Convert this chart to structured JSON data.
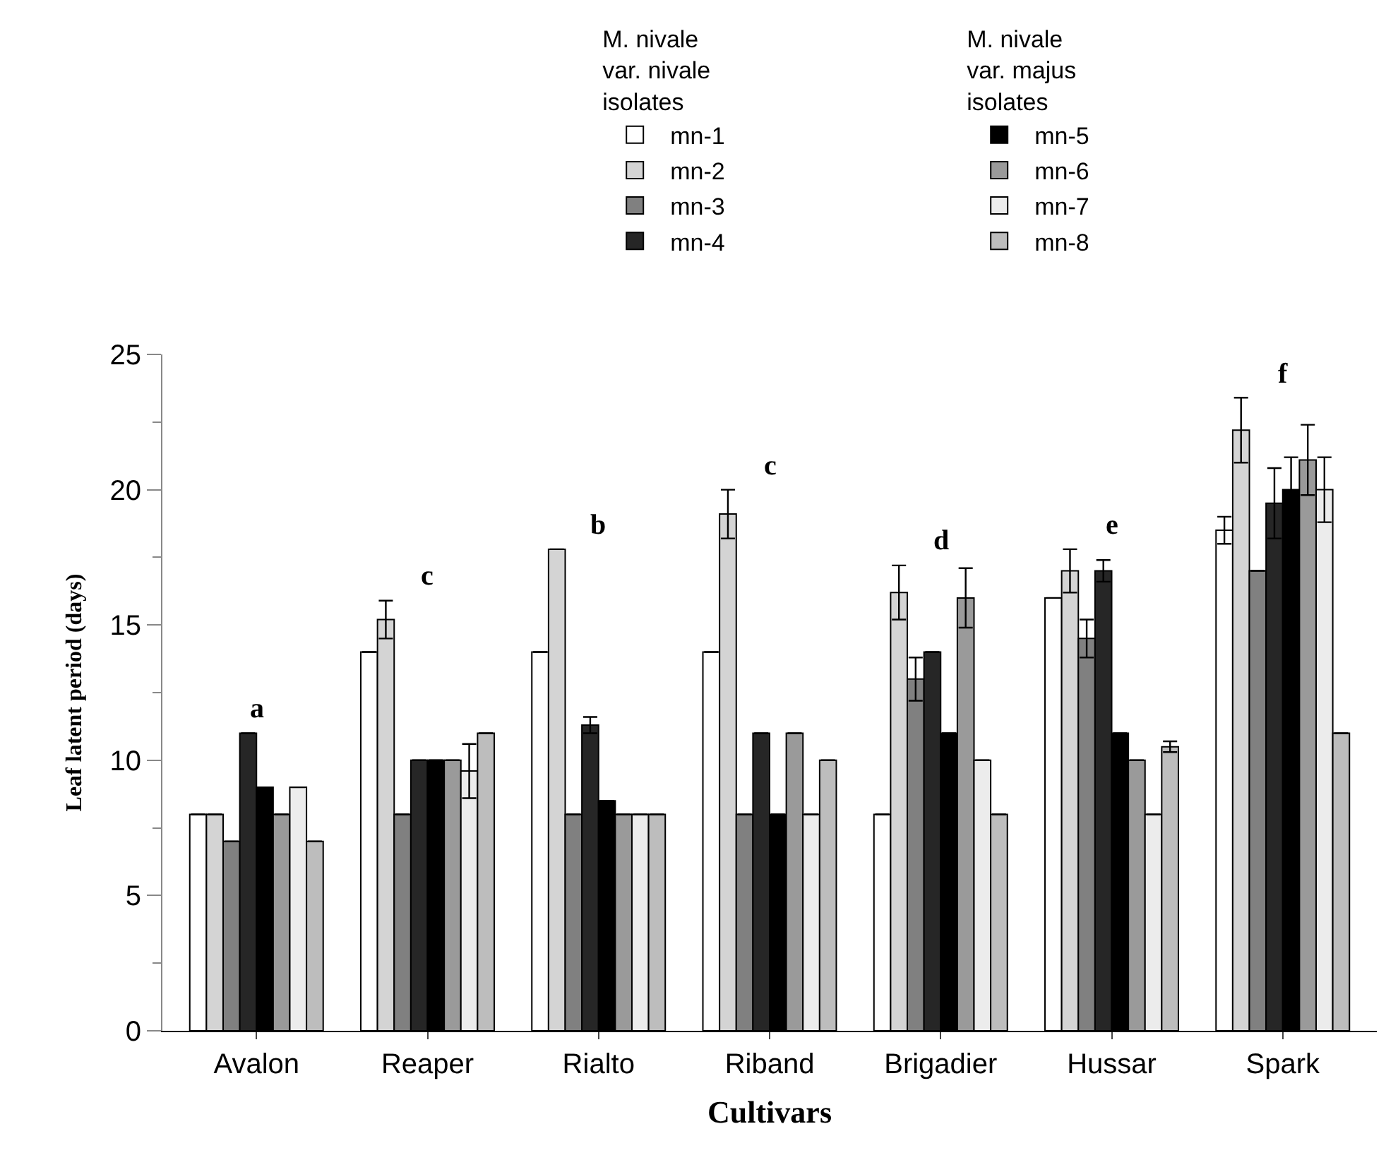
{
  "chart_data": {
    "type": "bar",
    "xlabel": "Cultivars",
    "ylabel": "Leaf latent period (days)",
    "legend_title": [
      "M. nivale\nvar. nivale\nisolates",
      "M. nivale\nvar. majus\nisolates"
    ],
    "categories": [
      "Avalon",
      "Reaper",
      "Rialto",
      "Riband",
      "Brigadier",
      "Hussar",
      "Spark"
    ],
    "series": [
      {
        "name": "mn-1",
        "color": "#ffffff",
        "values": [
          8,
          14,
          14,
          14,
          8,
          16,
          18.5
        ],
        "errors": [
          null,
          null,
          null,
          null,
          null,
          null,
          0.5
        ]
      },
      {
        "name": "mn-2",
        "color": "#d4d4d4",
        "values": [
          8,
          15.2,
          17.8,
          19.1,
          16.2,
          17,
          22.2
        ],
        "errors": [
          null,
          0.7,
          null,
          0.9,
          1.0,
          0.8,
          1.2
        ]
      },
      {
        "name": "mn-3",
        "color": "#808080",
        "values": [
          7,
          8,
          8,
          8,
          13,
          14.5,
          17
        ],
        "errors": [
          null,
          null,
          null,
          null,
          0.8,
          0.7,
          null
        ]
      },
      {
        "name": "mn-4",
        "color": "#262626",
        "values": [
          11,
          10,
          11.3,
          11,
          14,
          17,
          19.5
        ],
        "errors": [
          null,
          null,
          0.3,
          null,
          null,
          0.4,
          1.3
        ]
      },
      {
        "name": "mn-5",
        "color": "#000000",
        "values": [
          9,
          10,
          8.5,
          8,
          11,
          11,
          20
        ],
        "errors": [
          null,
          null,
          null,
          null,
          null,
          null,
          1.2
        ]
      },
      {
        "name": "mn-6",
        "color": "#9a9a9a",
        "values": [
          8,
          10,
          8,
          11,
          16,
          10,
          21.1
        ],
        "errors": [
          null,
          null,
          null,
          null,
          1.1,
          null,
          1.3
        ]
      },
      {
        "name": "mn-7",
        "color": "#ececec",
        "values": [
          9,
          9.6,
          8,
          8,
          10,
          8,
          20
        ],
        "errors": [
          null,
          1.0,
          null,
          null,
          null,
          null,
          1.2
        ]
      },
      {
        "name": "mn-8",
        "color": "#bdbdbd",
        "values": [
          7,
          11,
          8,
          10,
          8,
          10.5,
          11
        ],
        "errors": [
          null,
          null,
          null,
          null,
          null,
          0.2,
          null
        ]
      }
    ],
    "ylim": [
      0,
      25
    ],
    "yticks": [
      0,
      5,
      10,
      15,
      20,
      25
    ],
    "legend": "top",
    "annotations": [
      "a",
      "c",
      "b",
      "c",
      "d",
      "e",
      "f"
    ]
  }
}
